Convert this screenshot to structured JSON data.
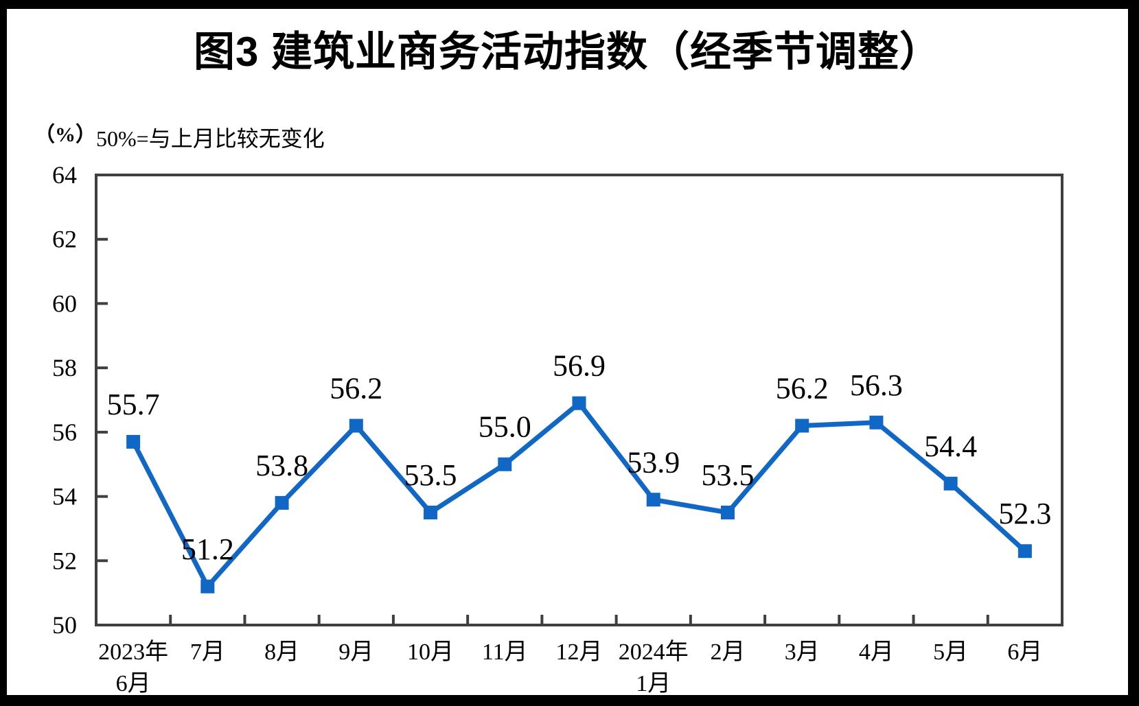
{
  "page": {
    "background": "#FFFFFF",
    "border_color": "#000000"
  },
  "header": {
    "title": "图3  建筑业商务活动指数（经季节调整）"
  },
  "axis_notes": {
    "unit": "（%）",
    "baseline_note": "50%=与上月比较无变化"
  },
  "chart_data": {
    "type": "line",
    "title": "图3  建筑业商务活动指数（经季节调整）",
    "ylabel": "（%）",
    "annotation": "50%=与上月比较无变化",
    "xlabel": "",
    "categories": [
      "2023年6月",
      "7月",
      "8月",
      "9月",
      "10月",
      "11月",
      "12月",
      "2024年1月",
      "2月",
      "3月",
      "4月",
      "5月",
      "6月"
    ],
    "x_tick_lines": [
      [
        "2023年",
        "6月"
      ],
      [
        "7月"
      ],
      [
        "8月"
      ],
      [
        "9月"
      ],
      [
        "10月"
      ],
      [
        "11月"
      ],
      [
        "12月"
      ],
      [
        "2024年",
        "1月"
      ],
      [
        "2月"
      ],
      [
        "3月"
      ],
      [
        "4月"
      ],
      [
        "5月"
      ],
      [
        "6月"
      ]
    ],
    "series": [
      {
        "name": "建筑业商务活动指数",
        "values": [
          55.7,
          51.2,
          53.8,
          56.2,
          53.5,
          55.0,
          56.9,
          53.9,
          53.5,
          56.2,
          56.3,
          54.4,
          52.3
        ],
        "point_labels": [
          "55.7",
          "51.2",
          "53.8",
          "56.2",
          "53.5",
          "55.0",
          "56.9",
          "53.9",
          "53.5",
          "56.2",
          "56.3",
          "54.4",
          "52.3"
        ],
        "color": "#1167C6",
        "marker": "square"
      }
    ],
    "ylim": [
      50,
      64
    ],
    "ytick_step": 2,
    "yticks": [
      50,
      52,
      54,
      56,
      58,
      60,
      62,
      64
    ],
    "grid": false,
    "legend": false,
    "axis_color": "#3F3F3F"
  }
}
